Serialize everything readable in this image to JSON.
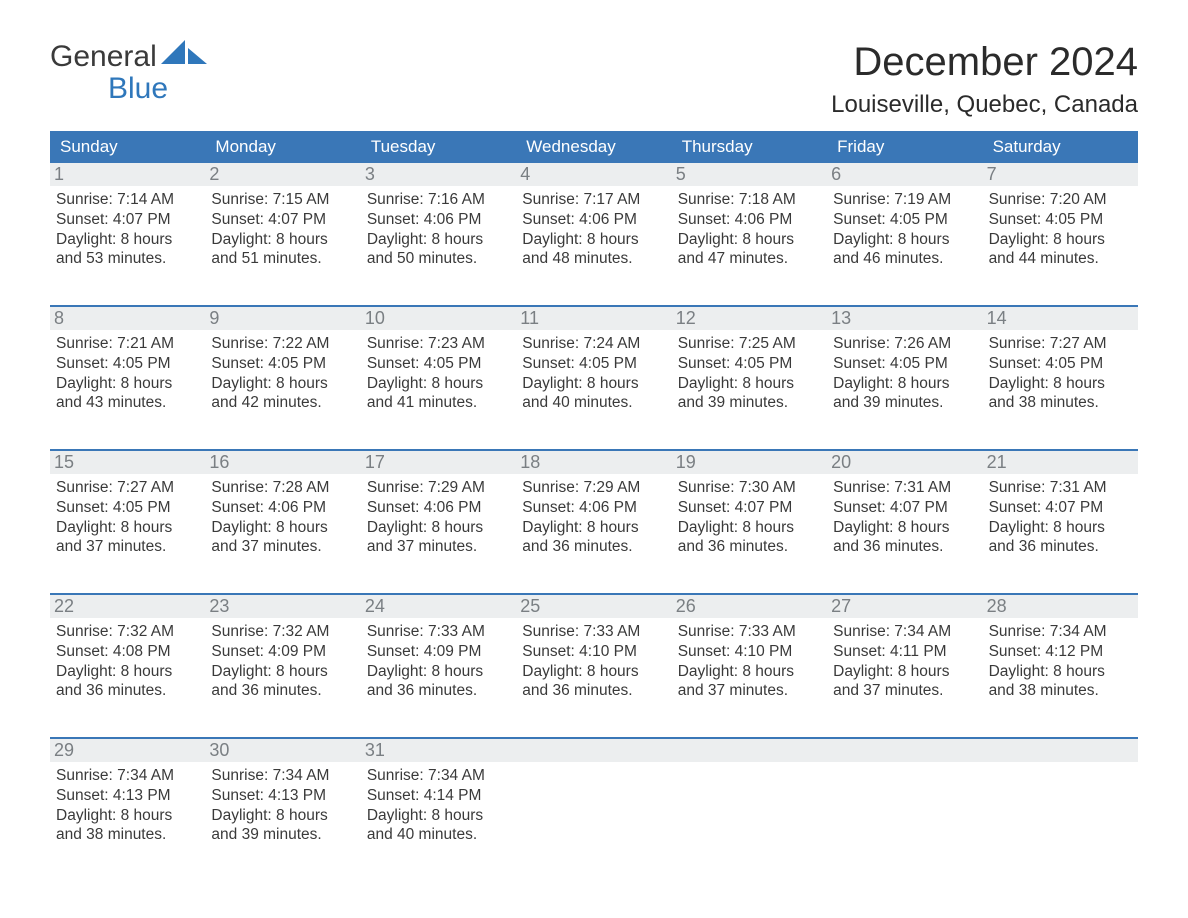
{
  "logo": {
    "word1": "General",
    "word2": "Blue"
  },
  "header": {
    "title": "December 2024",
    "location": "Louiseville, Quebec, Canada"
  },
  "styling": {
    "header_bg": "#3a77b7",
    "header_text": "#ffffff",
    "daynum_bg": "#eceeef",
    "daynum_text": "#7a7f83",
    "body_text": "#3a3a3a",
    "logo_blue": "#2f77bb",
    "page_bg": "#ffffff",
    "title_fontsize": 40,
    "location_fontsize": 24,
    "dayhead_fontsize": 17,
    "info_fontsize": 15.5
  },
  "day_names": [
    "Sunday",
    "Monday",
    "Tuesday",
    "Wednesday",
    "Thursday",
    "Friday",
    "Saturday"
  ],
  "weeks": [
    [
      {
        "n": "1",
        "sunrise": "Sunrise: 7:14 AM",
        "sunset": "Sunset: 4:07 PM",
        "d1": "Daylight: 8 hours",
        "d2": "and 53 minutes."
      },
      {
        "n": "2",
        "sunrise": "Sunrise: 7:15 AM",
        "sunset": "Sunset: 4:07 PM",
        "d1": "Daylight: 8 hours",
        "d2": "and 51 minutes."
      },
      {
        "n": "3",
        "sunrise": "Sunrise: 7:16 AM",
        "sunset": "Sunset: 4:06 PM",
        "d1": "Daylight: 8 hours",
        "d2": "and 50 minutes."
      },
      {
        "n": "4",
        "sunrise": "Sunrise: 7:17 AM",
        "sunset": "Sunset: 4:06 PM",
        "d1": "Daylight: 8 hours",
        "d2": "and 48 minutes."
      },
      {
        "n": "5",
        "sunrise": "Sunrise: 7:18 AM",
        "sunset": "Sunset: 4:06 PM",
        "d1": "Daylight: 8 hours",
        "d2": "and 47 minutes."
      },
      {
        "n": "6",
        "sunrise": "Sunrise: 7:19 AM",
        "sunset": "Sunset: 4:05 PM",
        "d1": "Daylight: 8 hours",
        "d2": "and 46 minutes."
      },
      {
        "n": "7",
        "sunrise": "Sunrise: 7:20 AM",
        "sunset": "Sunset: 4:05 PM",
        "d1": "Daylight: 8 hours",
        "d2": "and 44 minutes."
      }
    ],
    [
      {
        "n": "8",
        "sunrise": "Sunrise: 7:21 AM",
        "sunset": "Sunset: 4:05 PM",
        "d1": "Daylight: 8 hours",
        "d2": "and 43 minutes."
      },
      {
        "n": "9",
        "sunrise": "Sunrise: 7:22 AM",
        "sunset": "Sunset: 4:05 PM",
        "d1": "Daylight: 8 hours",
        "d2": "and 42 minutes."
      },
      {
        "n": "10",
        "sunrise": "Sunrise: 7:23 AM",
        "sunset": "Sunset: 4:05 PM",
        "d1": "Daylight: 8 hours",
        "d2": "and 41 minutes."
      },
      {
        "n": "11",
        "sunrise": "Sunrise: 7:24 AM",
        "sunset": "Sunset: 4:05 PM",
        "d1": "Daylight: 8 hours",
        "d2": "and 40 minutes."
      },
      {
        "n": "12",
        "sunrise": "Sunrise: 7:25 AM",
        "sunset": "Sunset: 4:05 PM",
        "d1": "Daylight: 8 hours",
        "d2": "and 39 minutes."
      },
      {
        "n": "13",
        "sunrise": "Sunrise: 7:26 AM",
        "sunset": "Sunset: 4:05 PM",
        "d1": "Daylight: 8 hours",
        "d2": "and 39 minutes."
      },
      {
        "n": "14",
        "sunrise": "Sunrise: 7:27 AM",
        "sunset": "Sunset: 4:05 PM",
        "d1": "Daylight: 8 hours",
        "d2": "and 38 minutes."
      }
    ],
    [
      {
        "n": "15",
        "sunrise": "Sunrise: 7:27 AM",
        "sunset": "Sunset: 4:05 PM",
        "d1": "Daylight: 8 hours",
        "d2": "and 37 minutes."
      },
      {
        "n": "16",
        "sunrise": "Sunrise: 7:28 AM",
        "sunset": "Sunset: 4:06 PM",
        "d1": "Daylight: 8 hours",
        "d2": "and 37 minutes."
      },
      {
        "n": "17",
        "sunrise": "Sunrise: 7:29 AM",
        "sunset": "Sunset: 4:06 PM",
        "d1": "Daylight: 8 hours",
        "d2": "and 37 minutes."
      },
      {
        "n": "18",
        "sunrise": "Sunrise: 7:29 AM",
        "sunset": "Sunset: 4:06 PM",
        "d1": "Daylight: 8 hours",
        "d2": "and 36 minutes."
      },
      {
        "n": "19",
        "sunrise": "Sunrise: 7:30 AM",
        "sunset": "Sunset: 4:07 PM",
        "d1": "Daylight: 8 hours",
        "d2": "and 36 minutes."
      },
      {
        "n": "20",
        "sunrise": "Sunrise: 7:31 AM",
        "sunset": "Sunset: 4:07 PM",
        "d1": "Daylight: 8 hours",
        "d2": "and 36 minutes."
      },
      {
        "n": "21",
        "sunrise": "Sunrise: 7:31 AM",
        "sunset": "Sunset: 4:07 PM",
        "d1": "Daylight: 8 hours",
        "d2": "and 36 minutes."
      }
    ],
    [
      {
        "n": "22",
        "sunrise": "Sunrise: 7:32 AM",
        "sunset": "Sunset: 4:08 PM",
        "d1": "Daylight: 8 hours",
        "d2": "and 36 minutes."
      },
      {
        "n": "23",
        "sunrise": "Sunrise: 7:32 AM",
        "sunset": "Sunset: 4:09 PM",
        "d1": "Daylight: 8 hours",
        "d2": "and 36 minutes."
      },
      {
        "n": "24",
        "sunrise": "Sunrise: 7:33 AM",
        "sunset": "Sunset: 4:09 PM",
        "d1": "Daylight: 8 hours",
        "d2": "and 36 minutes."
      },
      {
        "n": "25",
        "sunrise": "Sunrise: 7:33 AM",
        "sunset": "Sunset: 4:10 PM",
        "d1": "Daylight: 8 hours",
        "d2": "and 36 minutes."
      },
      {
        "n": "26",
        "sunrise": "Sunrise: 7:33 AM",
        "sunset": "Sunset: 4:10 PM",
        "d1": "Daylight: 8 hours",
        "d2": "and 37 minutes."
      },
      {
        "n": "27",
        "sunrise": "Sunrise: 7:34 AM",
        "sunset": "Sunset: 4:11 PM",
        "d1": "Daylight: 8 hours",
        "d2": "and 37 minutes."
      },
      {
        "n": "28",
        "sunrise": "Sunrise: 7:34 AM",
        "sunset": "Sunset: 4:12 PM",
        "d1": "Daylight: 8 hours",
        "d2": "and 38 minutes."
      }
    ],
    [
      {
        "n": "29",
        "sunrise": "Sunrise: 7:34 AM",
        "sunset": "Sunset: 4:13 PM",
        "d1": "Daylight: 8 hours",
        "d2": "and 38 minutes."
      },
      {
        "n": "30",
        "sunrise": "Sunrise: 7:34 AM",
        "sunset": "Sunset: 4:13 PM",
        "d1": "Daylight: 8 hours",
        "d2": "and 39 minutes."
      },
      {
        "n": "31",
        "sunrise": "Sunrise: 7:34 AM",
        "sunset": "Sunset: 4:14 PM",
        "d1": "Daylight: 8 hours",
        "d2": "and 40 minutes."
      },
      null,
      null,
      null,
      null
    ]
  ]
}
